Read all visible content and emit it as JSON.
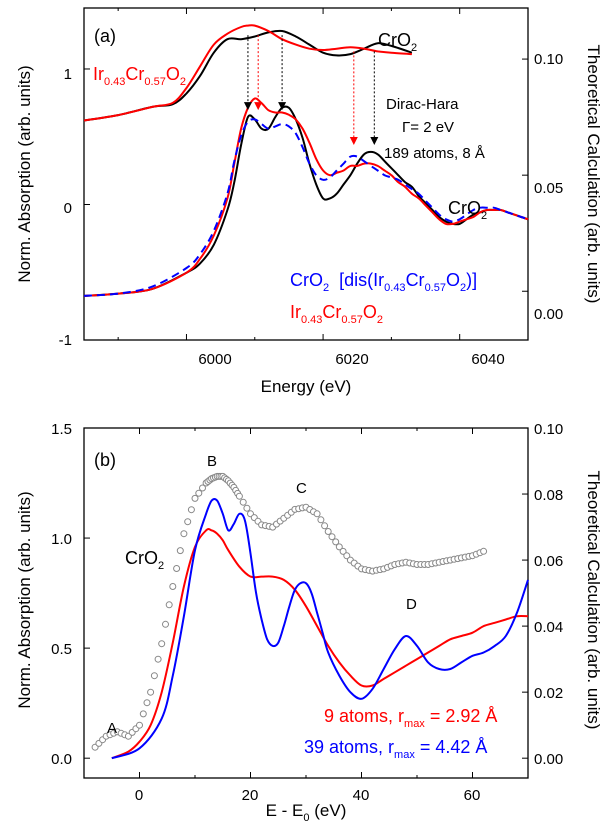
{
  "chart_data": [
    {
      "panel": "(a)",
      "type": "line",
      "xlabel": "Energy (eV)",
      "ylabel_left": "Norm. Absorption (arb. units)",
      "ylabel_right": "Theoretical Calculation (arb. units)",
      "xlim": [
        5985,
        6050
      ],
      "ylim_left": [
        -1,
        1.45
      ],
      "ylim_right": [
        -0.021,
        0.122
      ],
      "x_ticks": [
        "6000",
        "6020",
        "6040"
      ],
      "y_ticks_left": [
        "-1",
        "0",
        "1"
      ],
      "y_ticks_right": [
        "0.00",
        "0.05",
        "0.10"
      ],
      "annotations": {
        "panel_label": "(a)",
        "cro2_top": "CrO",
        "cro2_top_sub": "2",
        "ir_top_a": "Ir",
        "ir_top_b": "0.43",
        "ir_top_c": "Cr",
        "ir_top_d": "0.57",
        "ir_top_e": "O",
        "ir_top_f": "2",
        "dirac_hara": "Dirac-Hara",
        "gamma": "Γ= 2 eV",
        "atoms": "189 atoms, 8 Å",
        "cro2_mid": "CrO",
        "cro2_mid_sub": "2",
        "blue_label_a": "CrO",
        "blue_label_b": "2",
        "blue_label_c": "  [dis(Ir",
        "blue_label_d": "0.43",
        "blue_label_e": "Cr",
        "blue_label_f": "0.57",
        "blue_label_g": "O",
        "blue_label_h": "2",
        "blue_label_i": ")]",
        "red_label_a": "Ir",
        "red_label_b": "0.43",
        "red_label_c": "Cr",
        "red_label_d": "0.57",
        "red_label_e": "O",
        "red_label_f": "2"
      },
      "series": [
        {
          "color": "#000000",
          "axis": "left",
          "style": "solid",
          "x": [
            5985,
            5990,
            5995,
            5998,
            6000,
            6002,
            6004,
            6006,
            6008,
            6010,
            6012,
            6014,
            6016,
            6018,
            6020,
            6022,
            6024,
            6026,
            6028,
            6030,
            6033
          ],
          "y": [
            0.62,
            0.66,
            0.72,
            0.74,
            0.82,
            0.95,
            1.12,
            1.22,
            1.22,
            1.24,
            1.27,
            1.28,
            1.24,
            1.18,
            1.12,
            1.1,
            1.11,
            1.15,
            1.19,
            1.17,
            1.12
          ]
        },
        {
          "color": "#ff0000",
          "axis": "left",
          "style": "solid",
          "x": [
            5985,
            5990,
            5995,
            5998,
            6000,
            6002,
            6004,
            6006,
            6008,
            6009,
            6010,
            6012,
            6014,
            6016,
            6018,
            6020,
            6022,
            6024,
            6026,
            6028,
            6030,
            6033
          ],
          "y": [
            0.62,
            0.66,
            0.72,
            0.75,
            0.86,
            1.02,
            1.18,
            1.26,
            1.31,
            1.32,
            1.32,
            1.28,
            1.22,
            1.18,
            1.15,
            1.14,
            1.15,
            1.16,
            1.15,
            1.13,
            1.12,
            1.11
          ]
        },
        {
          "color": "#000000",
          "axis": "right",
          "style": "solid",
          "x": [
            5985,
            5990,
            5995,
            6000,
            6002,
            6004,
            6006,
            6007,
            6008,
            6009,
            6010,
            6011,
            6012,
            6013,
            6014,
            6015,
            6016,
            6017,
            6018,
            6019,
            6020,
            6021,
            6022,
            6023,
            6024,
            6025,
            6026,
            6027,
            6028,
            6029,
            6030,
            6031,
            6032,
            6033,
            6034,
            6035,
            6036,
            6037,
            6038,
            6039,
            6040,
            6041,
            6042,
            6043,
            6044,
            6045,
            6046,
            6047,
            6048,
            6049,
            6050
          ],
          "y": [
            -0.002,
            -0.001,
            0.001,
            0.008,
            0.012,
            0.02,
            0.035,
            0.047,
            0.063,
            0.075,
            0.074,
            0.07,
            0.07,
            0.075,
            0.079,
            0.079,
            0.074,
            0.066,
            0.055,
            0.046,
            0.04,
            0.04,
            0.042,
            0.046,
            0.05,
            0.055,
            0.059,
            0.06,
            0.059,
            0.056,
            0.053,
            0.05,
            0.047,
            0.045,
            0.041,
            0.038,
            0.035,
            0.032,
            0.03,
            0.029,
            0.029,
            0.031,
            0.033,
            0.034,
            0.035,
            0.035,
            0.035,
            0.034,
            0.033,
            0.032,
            0.031
          ]
        },
        {
          "color": "#ff0000",
          "axis": "right",
          "style": "solid",
          "x": [
            5985,
            5990,
            5995,
            6000,
            6002,
            6004,
            6006,
            6007,
            6008,
            6009,
            6010,
            6011,
            6012,
            6013,
            6014,
            6015,
            6016,
            6017,
            6018,
            6019,
            6020,
            6021,
            6022,
            6023,
            6024,
            6025,
            6026,
            6027,
            6028,
            6029,
            6030,
            6031,
            6032,
            6033,
            6034,
            6035,
            6036,
            6037,
            6038,
            6039,
            6040,
            6041,
            6042,
            6043,
            6044,
            6045,
            6046,
            6047,
            6048,
            6049,
            6050
          ],
          "y": [
            -0.002,
            -0.001,
            0.001,
            0.008,
            0.014,
            0.024,
            0.04,
            0.055,
            0.07,
            0.079,
            0.083,
            0.081,
            0.078,
            0.077,
            0.077,
            0.076,
            0.074,
            0.07,
            0.064,
            0.057,
            0.052,
            0.05,
            0.051,
            0.052,
            0.054,
            0.054,
            0.055,
            0.055,
            0.054,
            0.052,
            0.05,
            0.047,
            0.045,
            0.042,
            0.04,
            0.037,
            0.034,
            0.031,
            0.029,
            0.029,
            0.03,
            0.031,
            0.032,
            0.034,
            0.035,
            0.035,
            0.035,
            0.034,
            0.033,
            0.032,
            0.031
          ]
        },
        {
          "color": "#0000ff",
          "axis": "right",
          "style": "dashed",
          "x": [
            5985,
            5990,
            5995,
            6000,
            6002,
            6004,
            6006,
            6007,
            6008,
            6009,
            6010,
            6011,
            6012,
            6013,
            6014,
            6015,
            6016,
            6017,
            6018,
            6019,
            6020,
            6021,
            6022,
            6023,
            6024,
            6025,
            6026,
            6027,
            6028,
            6029,
            6030,
            6031,
            6032,
            6033,
            6034,
            6035,
            6036,
            6037,
            6038,
            6039,
            6040,
            6041,
            6042,
            6043,
            6044,
            6045,
            6046,
            6047,
            6048,
            6049,
            6050
          ],
          "y": [
            -0.002,
            -0.001,
            0.002,
            0.01,
            0.016,
            0.026,
            0.042,
            0.056,
            0.067,
            0.073,
            0.074,
            0.072,
            0.07,
            0.071,
            0.072,
            0.071,
            0.068,
            0.062,
            0.055,
            0.05,
            0.048,
            0.049,
            0.052,
            0.055,
            0.058,
            0.058,
            0.056,
            0.054,
            0.052,
            0.05,
            0.049,
            0.048,
            0.046,
            0.044,
            0.042,
            0.039,
            0.036,
            0.033,
            0.031,
            0.03,
            0.031,
            0.033,
            0.035,
            0.036,
            0.036,
            0.036,
            0.035,
            0.034,
            0.033,
            0.032,
            0.031
          ]
        }
      ],
      "arrows": [
        {
          "x": 6009,
          "color": "#000000"
        },
        {
          "x": 6010.5,
          "color": "#ff0000"
        },
        {
          "x": 6014,
          "color": "#000000"
        },
        {
          "x": 6024.5,
          "color": "#ff0000"
        },
        {
          "x": 6027.5,
          "color": "#000000"
        }
      ]
    },
    {
      "panel": "(b)",
      "type": "line",
      "xlabel_a": "E - E",
      "xlabel_b": "0",
      "xlabel_c": " (eV)",
      "ylabel_left": "Norm. Absorption (arb. units)",
      "ylabel_right": "Theoretical Calculation (arb. units)",
      "xlim": [
        -10,
        70
      ],
      "ylim_left": [
        -0.09,
        1.5
      ],
      "ylim_right": [
        -0.006,
        0.1
      ],
      "x_ticks": [
        "0",
        "20",
        "40",
        "60"
      ],
      "y_ticks_left": [
        "0.0",
        "0.5",
        "1.0",
        "1.5"
      ],
      "y_ticks_right": [
        "0.00",
        "0.02",
        "0.04",
        "0.06",
        "0.08",
        "0.10"
      ],
      "annotations": {
        "panel_label": "(b)",
        "cro2_a": "CrO",
        "cro2_b": "2",
        "A": "A",
        "B": "B",
        "C": "C",
        "D": "D",
        "legend_red_a": "9 atoms, r",
        "legend_red_b": "max",
        "legend_red_c": " = 2.92 Å",
        "legend_blue_a": "39 atoms, r",
        "legend_blue_b": "max",
        "legend_blue_c": " = 4.42 Å"
      },
      "series": [
        {
          "color": "#888888",
          "axis": "left",
          "style": "circles",
          "x": [
            -8,
            -6,
            -4,
            -2,
            0,
            2,
            4,
            6,
            8,
            10,
            12,
            13,
            14,
            15,
            16,
            17,
            18,
            20,
            22,
            24,
            26,
            28,
            30,
            32,
            34,
            36,
            38,
            40,
            42,
            44,
            46,
            48,
            50,
            52,
            54,
            56,
            58,
            60,
            62
          ],
          "y": [
            0.05,
            0.1,
            0.12,
            0.1,
            0.15,
            0.3,
            0.52,
            0.78,
            1.02,
            1.18,
            1.25,
            1.27,
            1.28,
            1.28,
            1.26,
            1.23,
            1.19,
            1.11,
            1.06,
            1.05,
            1.09,
            1.13,
            1.14,
            1.11,
            1.03,
            0.96,
            0.9,
            0.86,
            0.85,
            0.86,
            0.88,
            0.89,
            0.88,
            0.88,
            0.89,
            0.9,
            0.91,
            0.92,
            0.94
          ]
        },
        {
          "color": "#ff0000",
          "axis": "right",
          "style": "solid",
          "x": [
            -5,
            -2,
            0,
            2,
            4,
            6,
            8,
            10,
            12,
            13,
            14,
            15,
            16,
            18,
            20,
            22,
            24,
            26,
            28,
            30,
            32,
            34,
            36,
            38,
            40,
            42,
            44,
            46,
            48,
            50,
            52,
            54,
            56,
            58,
            60,
            62,
            64,
            66,
            68,
            70
          ],
          "y": [
            0.0,
            0.002,
            0.005,
            0.01,
            0.02,
            0.035,
            0.052,
            0.064,
            0.069,
            0.069,
            0.068,
            0.066,
            0.063,
            0.058,
            0.055,
            0.055,
            0.055,
            0.054,
            0.051,
            0.046,
            0.04,
            0.034,
            0.029,
            0.025,
            0.022,
            0.022,
            0.024,
            0.026,
            0.028,
            0.03,
            0.032,
            0.034,
            0.036,
            0.037,
            0.038,
            0.04,
            0.041,
            0.042,
            0.043,
            0.043
          ]
        },
        {
          "color": "#0000ff",
          "axis": "right",
          "style": "solid",
          "x": [
            -5,
            0,
            4,
            6,
            8,
            10,
            12,
            13,
            14,
            15,
            16,
            17,
            18,
            19,
            20,
            21,
            22,
            23,
            24,
            25,
            26,
            27,
            28,
            29,
            30,
            31,
            32,
            33,
            34,
            36,
            38,
            40,
            42,
            44,
            46,
            48,
            50,
            52,
            54,
            56,
            58,
            60,
            62,
            64,
            66,
            68,
            70
          ],
          "y": [
            0.0,
            0.003,
            0.012,
            0.025,
            0.043,
            0.063,
            0.074,
            0.078,
            0.078,
            0.074,
            0.069,
            0.071,
            0.074,
            0.072,
            0.062,
            0.05,
            0.042,
            0.036,
            0.034,
            0.035,
            0.04,
            0.046,
            0.051,
            0.053,
            0.053,
            0.05,
            0.044,
            0.038,
            0.032,
            0.025,
            0.02,
            0.018,
            0.021,
            0.027,
            0.033,
            0.037,
            0.034,
            0.029,
            0.027,
            0.027,
            0.029,
            0.031,
            0.032,
            0.034,
            0.037,
            0.044,
            0.054
          ]
        }
      ]
    }
  ]
}
